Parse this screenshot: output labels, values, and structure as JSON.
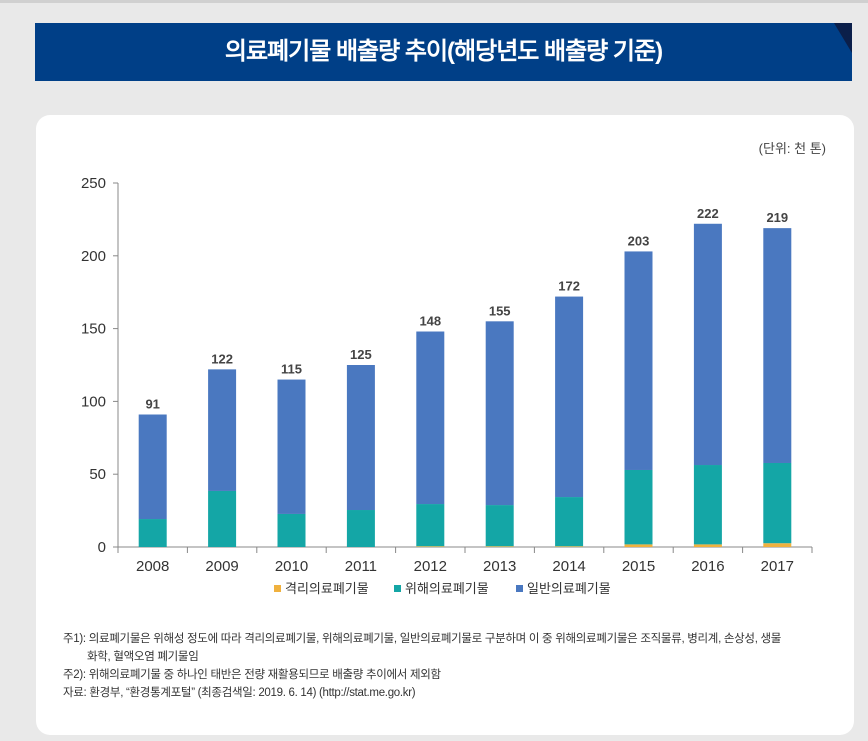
{
  "title": "의료폐기물 배출량 추이(해당년도 배출량 기준)",
  "unit": "(단위: 천 톤)",
  "chart_data": {
    "type": "bar",
    "stacked": true,
    "categories": [
      "2008",
      "2009",
      "2010",
      "2011",
      "2012",
      "2013",
      "2014",
      "2015",
      "2016",
      "2017"
    ],
    "series": [
      {
        "name": "격리의료폐기물",
        "color": "#f0b13e",
        "values": [
          0,
          0,
          0,
          0,
          0.5,
          0.5,
          0.5,
          1.8,
          1.8,
          2.6
        ]
      },
      {
        "name": "위해의료폐기물",
        "color": "#14a6a6",
        "values": [
          19.2,
          38.5,
          22.7,
          25.4,
          29,
          28.3,
          33.8,
          51.1,
          54.5,
          55.1
        ]
      },
      {
        "name": "일반의료폐기물",
        "color": "#4a78c0",
        "values": [
          71.8,
          83.5,
          92.3,
          99.6,
          118.5,
          126.2,
          137.7,
          150.1,
          165.7,
          161.3
        ]
      }
    ],
    "totals": [
      91,
      122,
      115,
      125,
      148,
      155,
      172,
      203,
      222,
      219
    ],
    "ylim": [
      0,
      250
    ],
    "yticks": [
      0,
      50,
      100,
      150,
      200,
      250
    ],
    "grid": false,
    "legend": "bottom"
  },
  "notes": {
    "note1": "주1): 의료폐기물은 위해성 정도에 따라 격리의료폐기물, 위해의료폐기물, 일반의료폐기물로 구분하며 이 중 위해의료폐기물은 조직물류, 병리계, 손상성, 생물",
    "note1b": "화학, 혈액오염 폐기물임",
    "note2": "주2): 위해의료폐기물 중 하나인 태반은 전량 재활용되므로 배출량 추이에서 제외함",
    "source": "자료: 환경부, “환경통계포털” (최종검색일: 2019. 6. 14) (http://stat.me.go.kr)"
  }
}
